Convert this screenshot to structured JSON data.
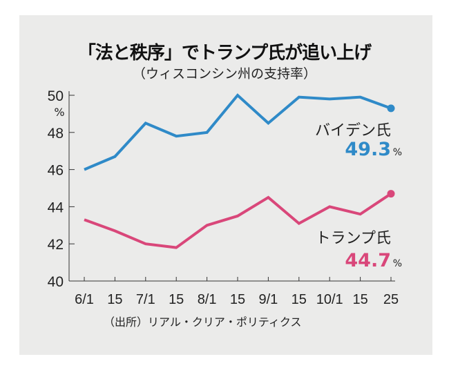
{
  "chart_data": {
    "type": "line",
    "title": "「法と秩序」でトランプ氏が追い上げ",
    "subtitle": "（ウィスコンシン州の支持率）",
    "ylabel": "%",
    "ylim": [
      40,
      50
    ],
    "yticks": [
      "40",
      "42",
      "44",
      "46",
      "48",
      "50"
    ],
    "categories": [
      "6/1",
      "15",
      "7/1",
      "15",
      "8/1",
      "15",
      "9/1",
      "15",
      "10/1",
      "15",
      "25"
    ],
    "series": [
      {
        "name": "バイデン氏",
        "color": "#2f8ac8",
        "values": [
          46.0,
          46.7,
          48.5,
          47.8,
          48.0,
          50.0,
          48.5,
          49.9,
          49.8,
          49.9,
          49.3
        ],
        "final_label": "49.3",
        "unit": "%"
      },
      {
        "name": "トランプ氏",
        "color": "#d9477a",
        "values": [
          43.3,
          42.7,
          42.0,
          41.8,
          43.0,
          43.5,
          44.5,
          43.1,
          44.0,
          43.6,
          44.7
        ],
        "final_label": "44.7",
        "unit": "%"
      }
    ],
    "source": "（出所）リアル・クリア・ポリティクス"
  }
}
